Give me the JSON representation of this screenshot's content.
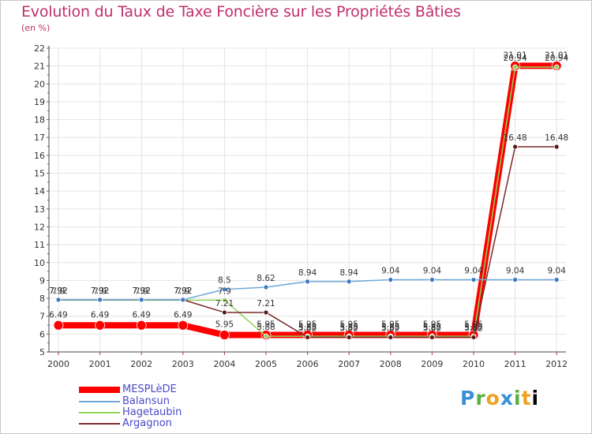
{
  "header": {
    "title": "Evolution du Taux de Taxe Foncière sur les Propriétés Bâties",
    "subtitle": "(en %)"
  },
  "logo": {
    "letters": [
      "P",
      "r",
      "o",
      "x",
      "i",
      "t",
      "i"
    ]
  },
  "chart_data": {
    "type": "line",
    "title": "Evolution du Taux de Taxe Foncière sur les Propriétés Bâties",
    "ylabel": "(en %)",
    "xlabel": "",
    "ylim": [
      5,
      22
    ],
    "yticks": [
      "5",
      "6",
      "7",
      "8",
      "9",
      "10",
      "11",
      "12",
      "13",
      "14",
      "15",
      "16",
      "17",
      "18",
      "19",
      "20",
      "21",
      "22"
    ],
    "categories": [
      "2000",
      "2001",
      "2002",
      "2003",
      "2004",
      "2005",
      "2006",
      "2007",
      "2008",
      "2009",
      "2010",
      "2011",
      "2012"
    ],
    "legend_position": "bottom-left",
    "series": [
      {
        "name": "MESPLèDE",
        "color": "#ff0000",
        "values": [
          6.49,
          6.49,
          6.49,
          6.49,
          5.95,
          5.95,
          5.95,
          5.95,
          5.95,
          5.95,
          5.95,
          21.01,
          21.01
        ],
        "labels": [
          "6.49",
          "6.49",
          "6.49",
          "6.49",
          "5.95",
          "5.95",
          "5.95",
          "5.95",
          "5.95",
          "5.95",
          "5.95",
          "21.01",
          "21.01"
        ]
      },
      {
        "name": "Balansun",
        "color": "#6fa8d8",
        "values": [
          7.92,
          7.92,
          7.92,
          7.92,
          8.5,
          8.62,
          8.94,
          8.94,
          9.04,
          9.04,
          9.04,
          9.04,
          9.04
        ],
        "labels": [
          "7.92",
          "7.92",
          "7.92",
          "7.92",
          "8.5",
          "8.62",
          "8.94",
          "8.94",
          "9.04",
          "9.04",
          "9.04",
          "9.04",
          "9.04"
        ]
      },
      {
        "name": "Hagetaubin",
        "color": "#8ed65a",
        "values": [
          7.9,
          7.9,
          7.9,
          7.9,
          7.9,
          5.88,
          5.88,
          5.88,
          5.88,
          5.88,
          5.88,
          20.94,
          20.94
        ],
        "labels": [
          "7.9",
          "7.9",
          "7.9",
          "7.9",
          "7.9",
          "5.88",
          "5.88",
          "5.88",
          "5.88",
          "5.88",
          "5.88",
          "20.94",
          "20.94"
        ]
      },
      {
        "name": "Argagnon",
        "color": "#7a2a2a",
        "values": [
          7.92,
          7.92,
          7.92,
          7.92,
          7.21,
          7.21,
          5.82,
          5.82,
          5.82,
          5.82,
          5.82,
          16.48,
          16.48
        ],
        "labels": [
          "7.92",
          "7.92",
          "7.92",
          "7.92",
          "7.21",
          "7.21",
          "5.82",
          "5.82",
          "5.82",
          "5.82",
          "5.82",
          "16.48",
          "16.48"
        ]
      }
    ]
  }
}
